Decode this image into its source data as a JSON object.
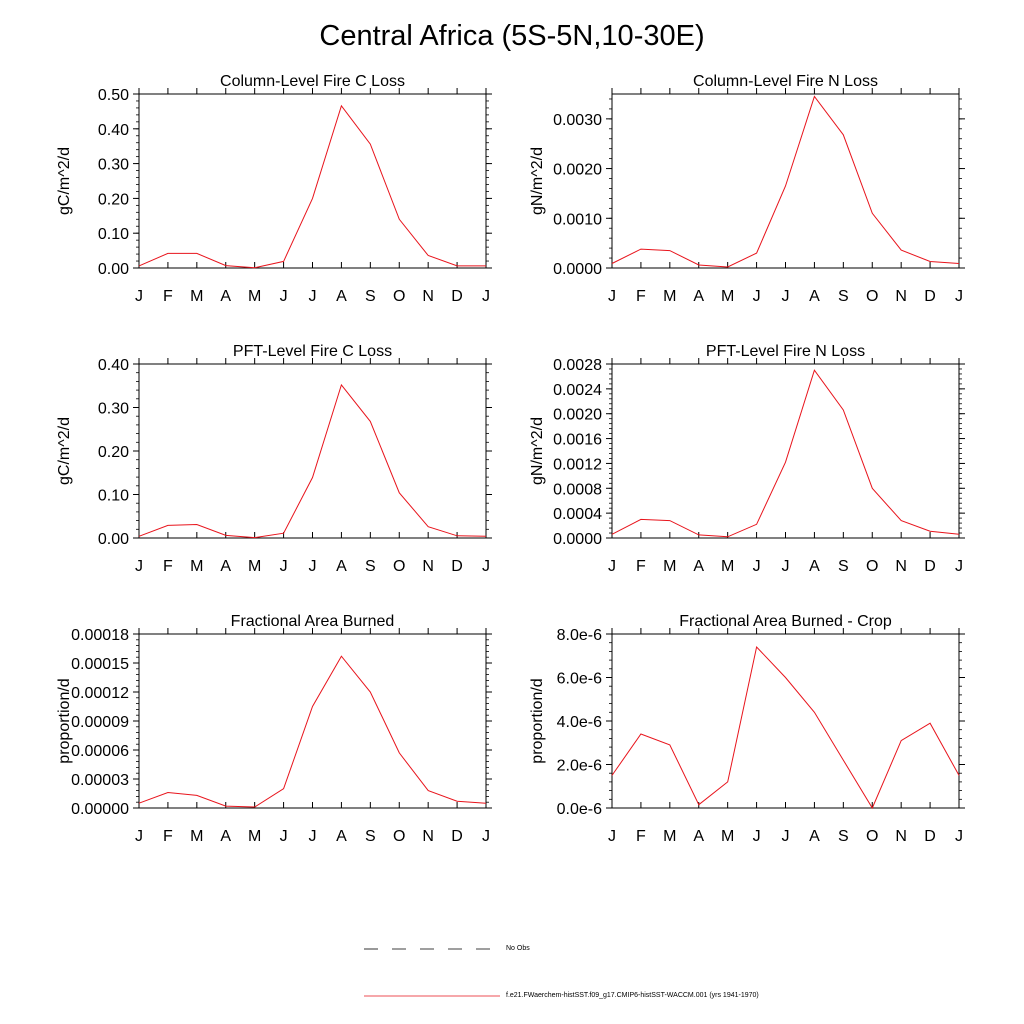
{
  "title": "Central Africa (5S-5N,10-30E)",
  "colors": {
    "model": "#e8141c",
    "obs": "#000000"
  },
  "legend": {
    "obs_label": "No Obs",
    "model_label": "f.e21.FWaerchem-histSST.f09_g17.CMIP6-histSST-WACCM.001 (yrs 1941-1970)"
  },
  "chart_data": [
    {
      "type": "line",
      "title": "Column-Level Fire C Loss",
      "xlabel": "",
      "ylabel": "gC/m^2/d",
      "x_ticks": [
        "J",
        "F",
        "M",
        "A",
        "M",
        "J",
        "J",
        "A",
        "S",
        "O",
        "N",
        "D",
        "J"
      ],
      "ylim": [
        0,
        0.5
      ],
      "y_ticks": [
        0,
        0.1,
        0.2,
        0.3,
        0.4,
        0.5
      ],
      "y_tick_labels": [
        "0.00",
        "0.10",
        "0.20",
        "0.30",
        "0.40",
        "0.50"
      ],
      "series": [
        {
          "values": [
            0.006,
            0.042,
            0.042,
            0.007,
            0.001,
            0.019,
            0.2,
            0.466,
            0.356,
            0.14,
            0.036,
            0.006,
            0.006
          ]
        }
      ]
    },
    {
      "type": "line",
      "title": "Column-Level Fire N Loss",
      "xlabel": "",
      "ylabel": "gN/m^2/d",
      "x_ticks": [
        "J",
        "F",
        "M",
        "A",
        "M",
        "J",
        "J",
        "A",
        "S",
        "O",
        "N",
        "D",
        "J"
      ],
      "ylim": [
        0,
        0.0035
      ],
      "y_ticks": [
        0,
        0.001,
        0.002,
        0.003
      ],
      "y_tick_labels": [
        "0.0000",
        "0.0010",
        "0.0020",
        "0.0030"
      ],
      "series": [
        {
          "values": [
            9e-05,
            0.00038,
            0.00035,
            6e-05,
            2e-05,
            0.0003,
            0.00165,
            0.00345,
            0.00268,
            0.0011,
            0.00036,
            0.00013,
            9e-05
          ]
        }
      ]
    },
    {
      "type": "line",
      "title": "PFT-Level Fire C Loss",
      "xlabel": "",
      "ylabel": "gC/m^2/d",
      "x_ticks": [
        "J",
        "F",
        "M",
        "A",
        "M",
        "J",
        "J",
        "A",
        "S",
        "O",
        "N",
        "D",
        "J"
      ],
      "ylim": [
        0,
        0.4
      ],
      "y_ticks": [
        0,
        0.1,
        0.2,
        0.3,
        0.4
      ],
      "y_tick_labels": [
        "0.00",
        "0.10",
        "0.20",
        "0.30",
        "0.40"
      ],
      "series": [
        {
          "values": [
            0.004,
            0.029,
            0.031,
            0.006,
            0.001,
            0.011,
            0.139,
            0.352,
            0.268,
            0.104,
            0.026,
            0.005,
            0.004
          ]
        }
      ]
    },
    {
      "type": "line",
      "title": "PFT-Level Fire N Loss",
      "xlabel": "",
      "ylabel": "gN/m^2/d",
      "x_ticks": [
        "J",
        "F",
        "M",
        "A",
        "M",
        "J",
        "J",
        "A",
        "S",
        "O",
        "N",
        "D",
        "J"
      ],
      "ylim": [
        0,
        0.0028
      ],
      "y_ticks": [
        0,
        0.0004,
        0.0008,
        0.0012,
        0.0016,
        0.002,
        0.0024,
        0.0028
      ],
      "y_tick_labels": [
        "0.0000",
        "0.0004",
        "0.0008",
        "0.0012",
        "0.0016",
        "0.0020",
        "0.0024",
        "0.0028"
      ],
      "series": [
        {
          "values": [
            6e-05,
            0.0003,
            0.00028,
            5e-05,
            2e-05,
            0.00022,
            0.00122,
            0.0027,
            0.00206,
            0.0008,
            0.00028,
            0.00011,
            6e-05
          ]
        }
      ]
    },
    {
      "type": "line",
      "title": "Fractional Area Burned",
      "xlabel": "",
      "ylabel": "proportion/d",
      "x_ticks": [
        "J",
        "F",
        "M",
        "A",
        "M",
        "J",
        "J",
        "A",
        "S",
        "O",
        "N",
        "D",
        "J"
      ],
      "ylim": [
        0,
        0.00018
      ],
      "y_ticks": [
        0,
        3e-05,
        6e-05,
        9e-05,
        0.00012,
        0.00015,
        0.00018
      ],
      "y_tick_labels": [
        "0.00000",
        "0.00003",
        "0.00006",
        "0.00009",
        "0.00012",
        "0.00015",
        "0.00018"
      ],
      "series": [
        {
          "values": [
            5e-06,
            1.6e-05,
            1.3e-05,
            2e-06,
            1e-06,
            2e-05,
            0.000105,
            0.000157,
            0.00012,
            5.7e-05,
            1.8e-05,
            7e-06,
            5e-06
          ]
        }
      ]
    },
    {
      "type": "line",
      "title": "Fractional Area Burned - Crop",
      "xlabel": "",
      "ylabel": "proportion/d",
      "x_ticks": [
        "J",
        "F",
        "M",
        "A",
        "M",
        "J",
        "J",
        "A",
        "S",
        "O",
        "N",
        "D",
        "J"
      ],
      "ylim": [
        0,
        8e-06
      ],
      "y_ticks": [
        0,
        2e-06,
        4e-06,
        6e-06,
        8e-06
      ],
      "y_tick_labels": [
        "0.0e-6",
        "2.0e-6",
        "4.0e-6",
        "6.0e-6",
        "8.0e-6"
      ],
      "series": [
        {
          "values": [
            1.5e-06,
            3.4e-06,
            2.9e-06,
            1.5e-07,
            1.2e-06,
            7.4e-06,
            6e-06,
            4.4e-06,
            2.2e-06,
            0.0,
            3.1e-06,
            3.9e-06,
            1.5e-06
          ]
        }
      ]
    }
  ]
}
